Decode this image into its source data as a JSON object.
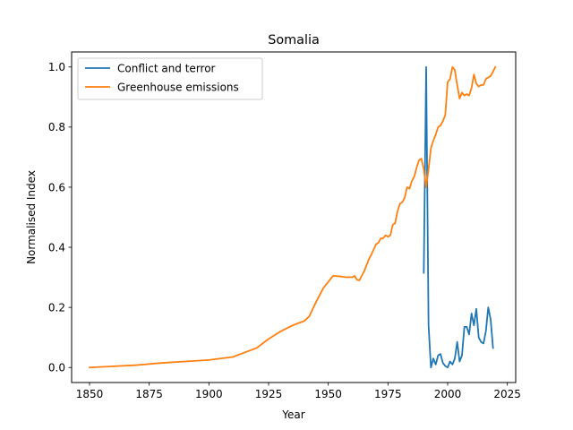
{
  "chart_data": {
    "type": "line",
    "title": "Somalia",
    "xlabel": "Year",
    "ylabel": "Normalised Index",
    "xlim": [
      1842.5,
      2028.5
    ],
    "ylim": [
      -0.05,
      1.05
    ],
    "xticks": [
      1850,
      1875,
      1900,
      1925,
      1950,
      1975,
      2000,
      2025
    ],
    "yticks": [
      0.0,
      0.2,
      0.4,
      0.6,
      0.8,
      1.0
    ],
    "xtick_labels": [
      "1850",
      "1875",
      "1900",
      "1925",
      "1950",
      "1975",
      "2000",
      "2025"
    ],
    "ytick_labels": [
      "0.0",
      "0.2",
      "0.4",
      "0.6",
      "0.8",
      "1.0"
    ],
    "grid": false,
    "legend_position": "top-left",
    "series": [
      {
        "name": "Conflict and terror",
        "color": "#1f77b4",
        "x": [
          1990,
          1991,
          1992,
          1993,
          1994,
          1995,
          1996,
          1997,
          1998,
          1999,
          2000,
          2001,
          2002,
          2003,
          2004,
          2005,
          2006,
          2007,
          2008,
          2009,
          2010,
          2011,
          2012,
          2013,
          2014,
          2015,
          2016,
          2017,
          2018,
          2019
        ],
        "y": [
          0.315,
          1.0,
          0.14,
          0.0,
          0.03,
          0.01,
          0.04,
          0.045,
          0.015,
          0.005,
          0.0,
          0.02,
          0.01,
          0.03,
          0.085,
          0.02,
          0.04,
          0.135,
          0.135,
          0.11,
          0.18,
          0.14,
          0.195,
          0.1,
          0.085,
          0.08,
          0.12,
          0.2,
          0.16,
          0.065
        ]
      },
      {
        "name": "Greenhouse emissions",
        "color": "#ff7f0e",
        "x": [
          1850,
          1860,
          1870,
          1880,
          1890,
          1900,
          1905,
          1910,
          1915,
          1920,
          1925,
          1930,
          1935,
          1940,
          1942,
          1945,
          1948,
          1950,
          1952,
          1955,
          1958,
          1959,
          1960,
          1961,
          1962,
          1963,
          1965,
          1967,
          1968,
          1970,
          1971,
          1972,
          1973,
          1974,
          1975,
          1976,
          1977,
          1978,
          1979,
          1980,
          1981,
          1982,
          1983,
          1984,
          1985,
          1986,
          1987,
          1988,
          1989,
          1990,
          1991,
          1992,
          1993,
          1994,
          1995,
          1996,
          1997,
          1998,
          1999,
          2000,
          2001,
          2002,
          2003,
          2004,
          2005,
          2006,
          2007,
          2008,
          2009,
          2010,
          2011,
          2012,
          2013,
          2014,
          2015,
          2016,
          2017,
          2018,
          2019,
          2020
        ],
        "y": [
          0.0,
          0.004,
          0.008,
          0.015,
          0.02,
          0.025,
          0.03,
          0.035,
          0.05,
          0.065,
          0.095,
          0.12,
          0.14,
          0.155,
          0.17,
          0.22,
          0.265,
          0.285,
          0.305,
          0.303,
          0.3,
          0.301,
          0.3,
          0.305,
          0.292,
          0.29,
          0.32,
          0.36,
          0.375,
          0.41,
          0.415,
          0.43,
          0.43,
          0.44,
          0.435,
          0.44,
          0.475,
          0.48,
          0.52,
          0.545,
          0.55,
          0.565,
          0.6,
          0.595,
          0.62,
          0.635,
          0.665,
          0.69,
          0.695,
          0.66,
          0.6,
          0.66,
          0.73,
          0.755,
          0.775,
          0.8,
          0.805,
          0.82,
          0.84,
          0.95,
          0.96,
          1.0,
          0.99,
          0.94,
          0.895,
          0.915,
          0.905,
          0.91,
          0.905,
          0.93,
          0.975,
          0.945,
          0.935,
          0.94,
          0.94,
          0.96,
          0.965,
          0.97,
          0.985,
          1.0
        ]
      }
    ]
  }
}
